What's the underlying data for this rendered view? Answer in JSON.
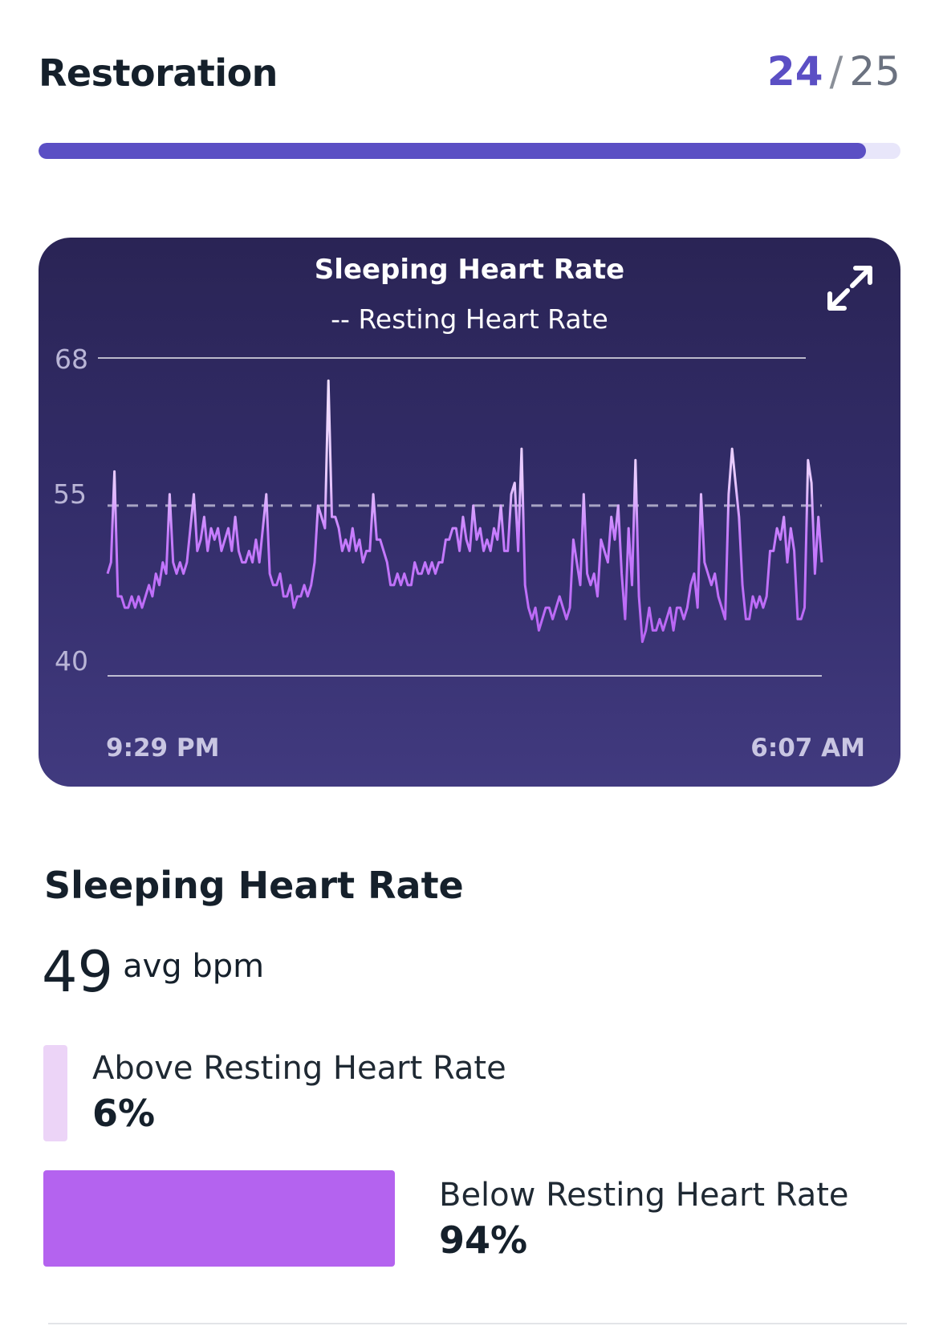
{
  "header": {
    "title": "Restoration",
    "score_current": "24",
    "score_separator": "/",
    "score_max": "25",
    "progress_fraction": 0.96
  },
  "colors": {
    "accent": "#5b4fc4",
    "track": "#e8e6fa",
    "line": "#c77dff",
    "above_swatch": "#ecd4f7",
    "below_swatch": "#b463ef"
  },
  "card": {
    "expand_icon": "expand-arrows-icon"
  },
  "chart_data": {
    "type": "line",
    "title": "Sleeping Heart Rate",
    "legend": "-- Resting Heart Rate",
    "y_ticks": [
      "68",
      "55",
      "40"
    ],
    "x_ticks": [
      "9:29 PM",
      "6:07 AM"
    ],
    "ylim": [
      40,
      68
    ],
    "reference_line": {
      "name": "Resting Heart Rate",
      "value": 55,
      "style": "dashed"
    },
    "series": [
      {
        "values": [
          49,
          50,
          58,
          47,
          47,
          46,
          46,
          47,
          46,
          47,
          46,
          47,
          48,
          47,
          49,
          48,
          50,
          49,
          56,
          50,
          49,
          50,
          49,
          50,
          53,
          56,
          51,
          52,
          54,
          51,
          53,
          52,
          53,
          51,
          52,
          53,
          51,
          54,
          51,
          50,
          50,
          51,
          50,
          52,
          50,
          53,
          56,
          49,
          48,
          48,
          49,
          47,
          47,
          48,
          46,
          47,
          47,
          48,
          47,
          48,
          50,
          55,
          54,
          53,
          66,
          54,
          54,
          53,
          51,
          52,
          51,
          53,
          51,
          52,
          50,
          51,
          51,
          56,
          52,
          52,
          51,
          50,
          48,
          48,
          49,
          48,
          49,
          48,
          48,
          50,
          49,
          49,
          50,
          49,
          50,
          49,
          50,
          50,
          52,
          52,
          53,
          53,
          51,
          54,
          52,
          51,
          55,
          52,
          53,
          51,
          52,
          51,
          53,
          52,
          55,
          51,
          51,
          56,
          57,
          51,
          60,
          48,
          46,
          45,
          46,
          44,
          45,
          46,
          46,
          45,
          46,
          47,
          46,
          45,
          46,
          52,
          50,
          48,
          56,
          49,
          48,
          49,
          47,
          52,
          51,
          50,
          54,
          52,
          55,
          49,
          45,
          53,
          48,
          59,
          47,
          43,
          44,
          46,
          44,
          44,
          45,
          44,
          45,
          46,
          44,
          46,
          46,
          45,
          46,
          48,
          49,
          46,
          56,
          50,
          49,
          48,
          49,
          47,
          46,
          45,
          56,
          60,
          57,
          54,
          48,
          45,
          45,
          47,
          46,
          47,
          46,
          47,
          51,
          51,
          53,
          52,
          54,
          50,
          53,
          51,
          45,
          45,
          46,
          59,
          57,
          49,
          54,
          50
        ]
      }
    ]
  },
  "summary": {
    "title": "Sleeping Heart Rate",
    "avg_value": "49",
    "avg_unit": "avg bpm",
    "above": {
      "label": "Above Resting Heart Rate",
      "value": "6%",
      "fraction": 0.06
    },
    "below": {
      "label": "Below Resting Heart Rate",
      "value": "94%",
      "fraction": 0.94
    }
  }
}
